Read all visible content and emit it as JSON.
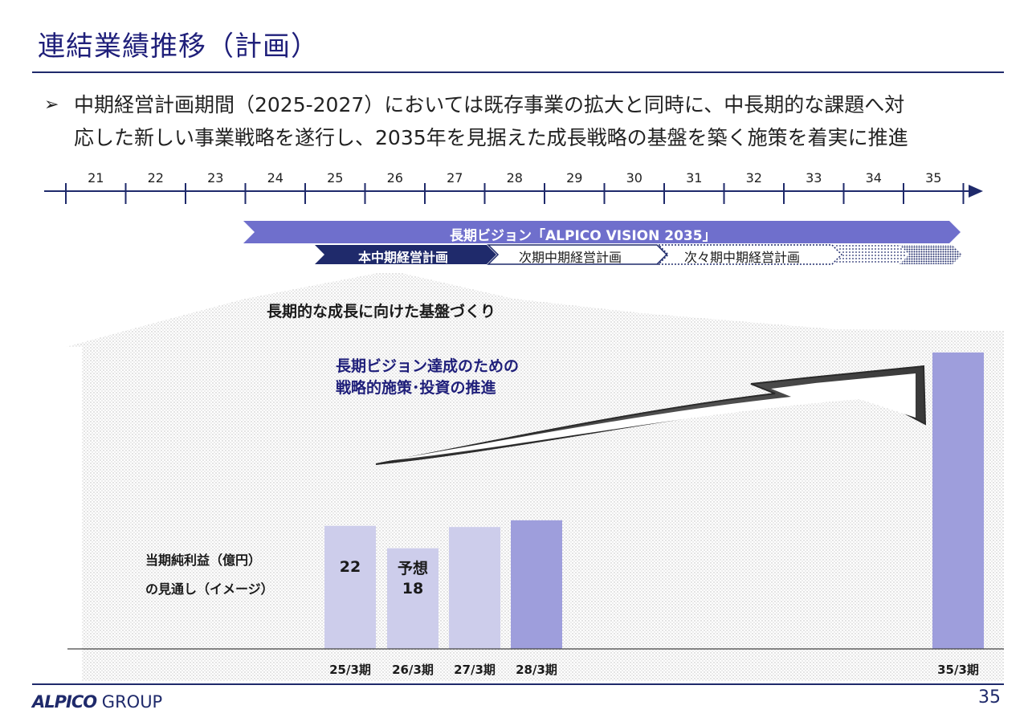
{
  "slide": {
    "title": "連結業績推移（計画）",
    "bullet_lines": [
      "中期経営計画期間（2025-2027）においては既存事業の拡大と同時に、中長期的な課題へ対",
      "応した新しい事業戦略を遂行し、2035年を見据えた成長戦略の基盤を築く施策を着実に推進"
    ],
    "page_number": "35"
  },
  "timeline": {
    "years": [
      "21",
      "22",
      "23",
      "24",
      "25",
      "26",
      "27",
      "28",
      "29",
      "30",
      "31",
      "32",
      "33",
      "34",
      "35"
    ],
    "vision_banner": "長期ビジョン「ALPICO VISION 2035」",
    "plans": [
      "本中期経営計画",
      "次期中期経営計画",
      "次々期中期経営計画"
    ]
  },
  "annotations": {
    "foundation": "長期的な成長に向けた基盤づくり",
    "strategy_lines": [
      "長期ビジョン達成のための",
      "戦略的施策･投資の推進"
    ],
    "net_income_lines": [
      "当期純利益（億円）",
      "の見通し（イメージ）"
    ]
  },
  "chart_data": {
    "type": "bar",
    "categories": [
      "25/3期",
      "26/3期",
      "27/3期",
      "28/3期",
      "35/3期"
    ],
    "values": [
      22,
      18,
      21.8,
      23,
      53
    ],
    "value_labels": [
      "22",
      "予想\n18",
      "",
      "",
      ""
    ],
    "colors": [
      "#cdcdeb",
      "#cdcdeb",
      "#cdcdeb",
      "#9e9edc",
      "#9e9edc"
    ],
    "ylim": [
      0,
      56
    ],
    "grid": false
  },
  "colors": {
    "navy": "#1f2a6b",
    "vision": "#6f6fcc",
    "bar_light": "#cdcdeb",
    "bar_dark": "#9e9edc"
  },
  "logo_text": {
    "brand": "ALPICO",
    "suffix": "GROUP"
  }
}
